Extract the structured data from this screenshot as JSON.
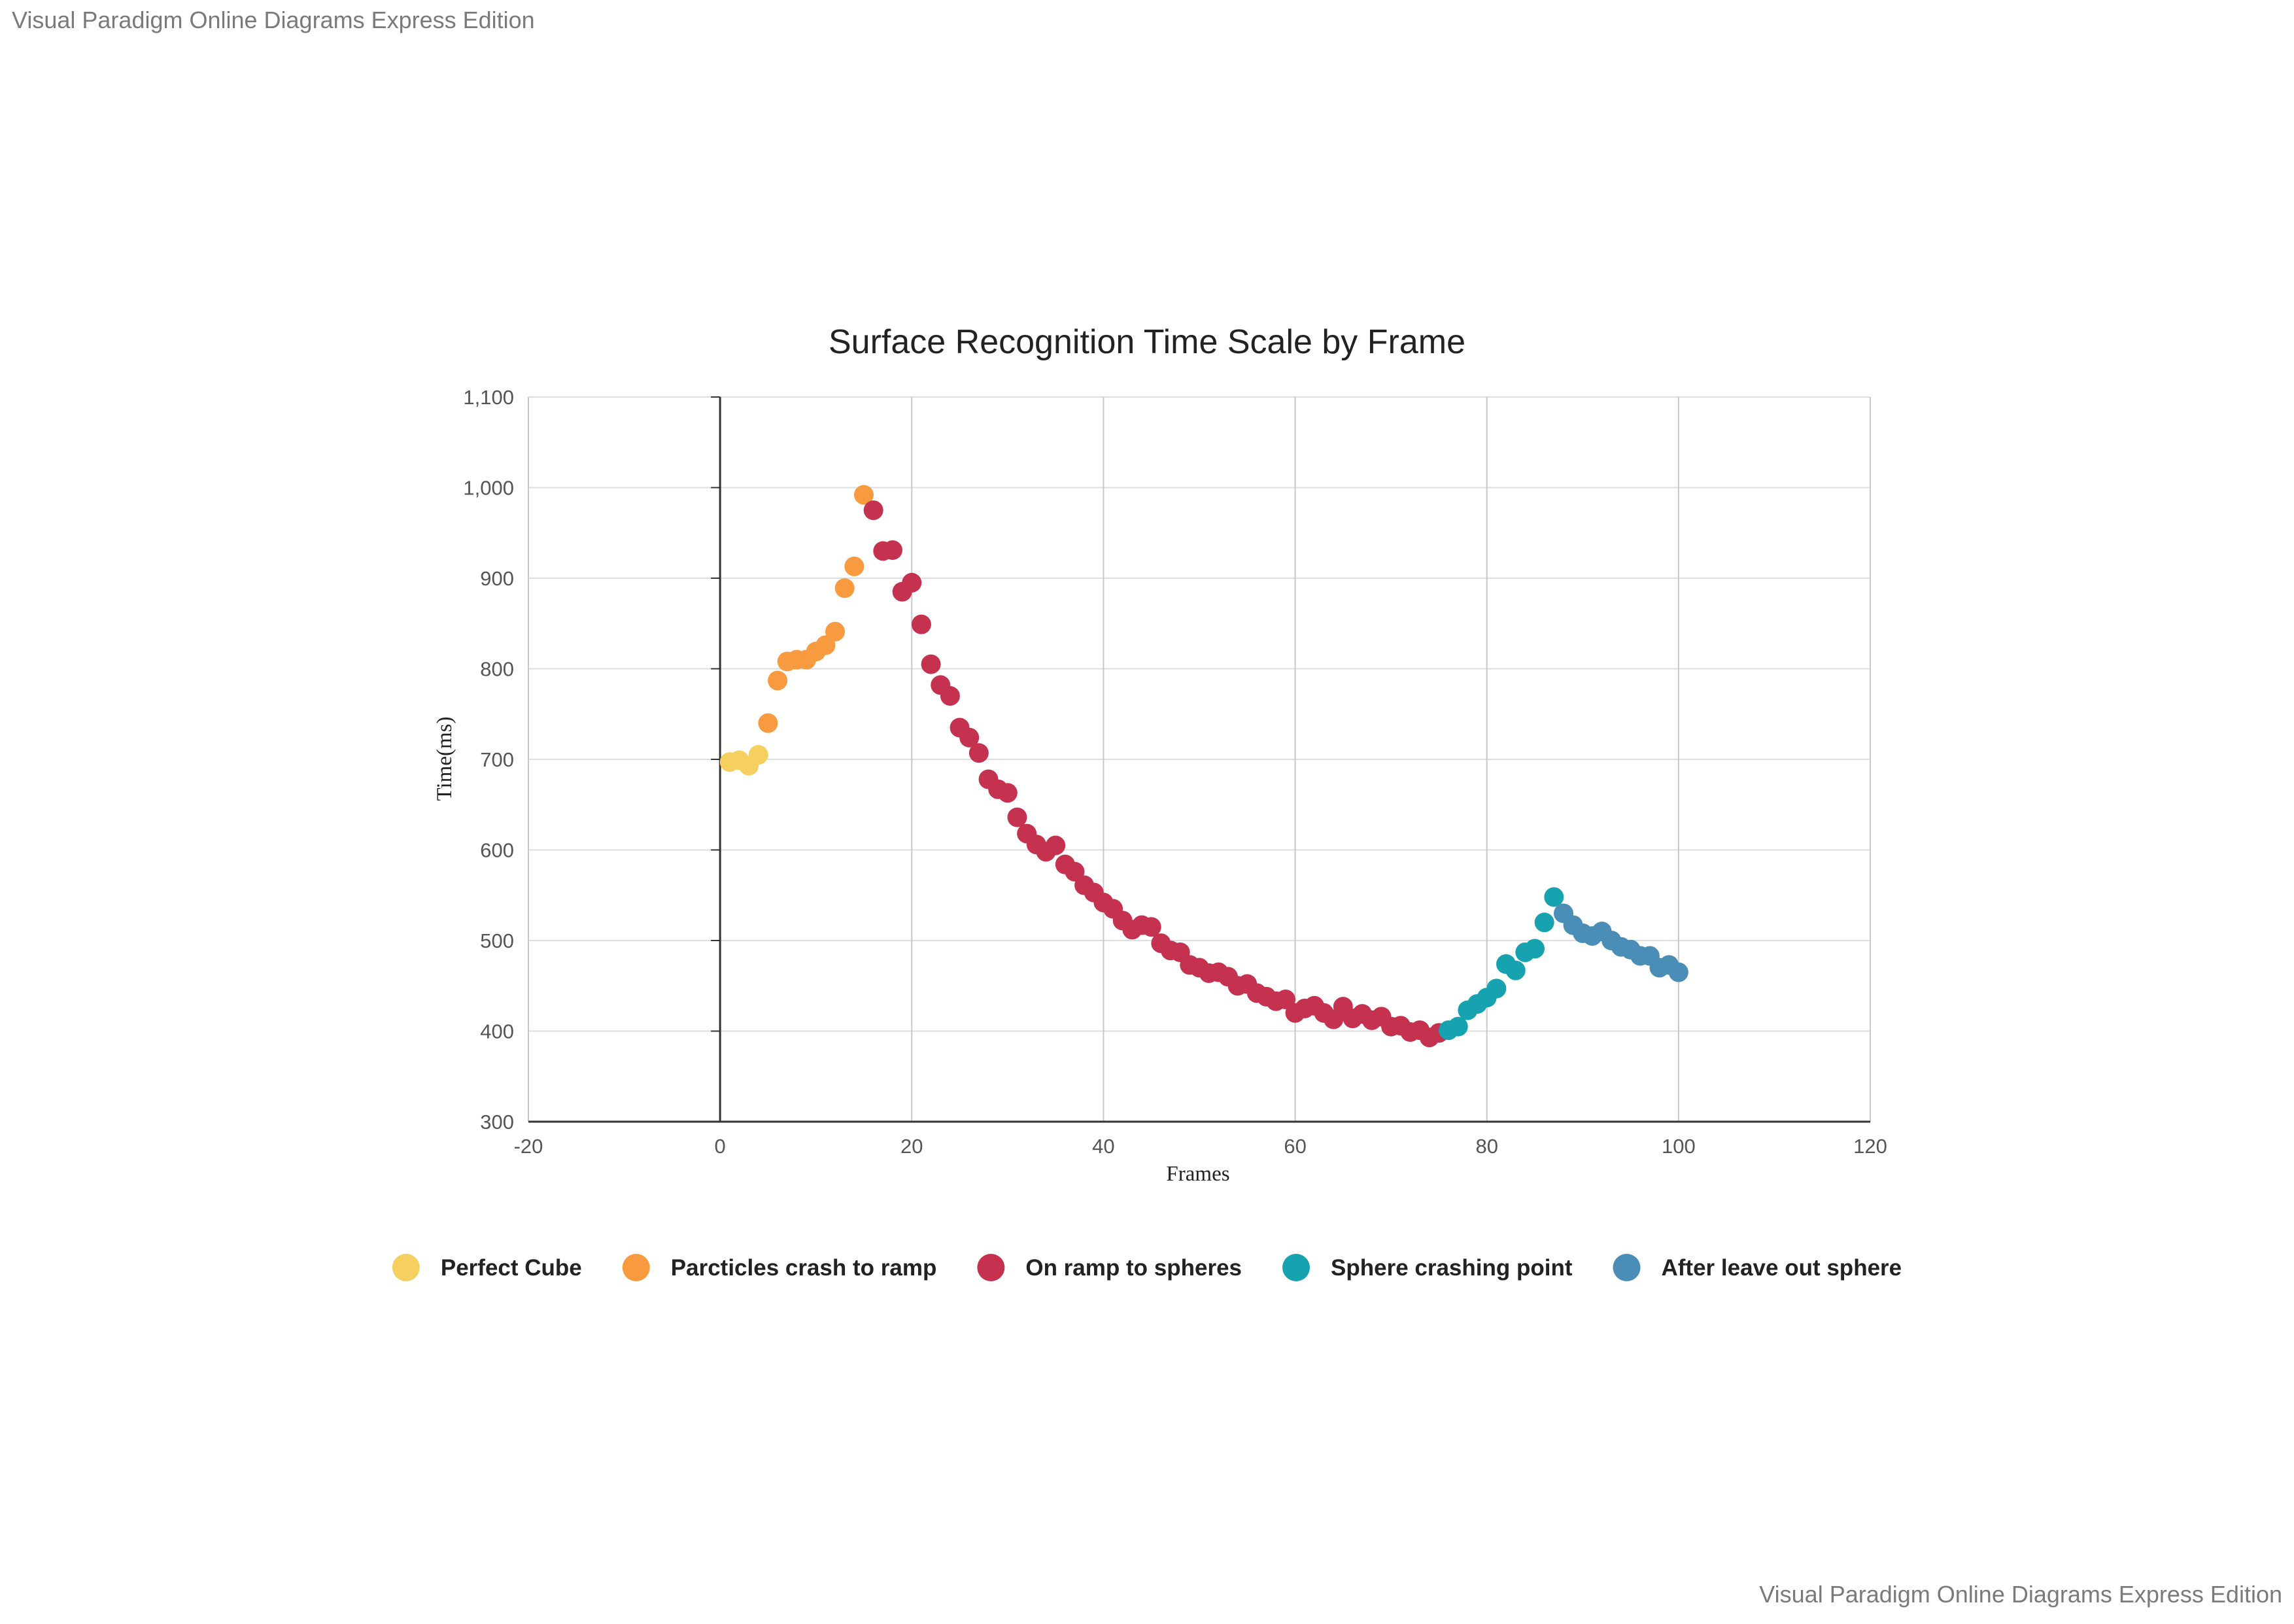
{
  "watermark": {
    "top": "Visual Paradigm Online Diagrams Express Edition",
    "bottom": "Visual Paradigm Online Diagrams Express Edition"
  },
  "chart_data": {
    "type": "scatter",
    "title": "Surface Recognition Time Scale by Frame",
    "xlabel": "Frames",
    "ylabel": "Time(ms)",
    "xlim": [
      -20,
      120
    ],
    "ylim": [
      300,
      1100
    ],
    "x_ticks": [
      "-20",
      "0",
      "20",
      "40",
      "60",
      "80",
      "100",
      "120"
    ],
    "y_ticks": [
      "300",
      "400",
      "500",
      "600",
      "700",
      "800",
      "900",
      "1,000",
      "1,100"
    ],
    "grid": true,
    "legend_position": "bottom",
    "series": [
      {
        "name": "Perfect Cube",
        "color": "#F5D060",
        "points": [
          [
            1,
            697
          ],
          [
            2,
            699
          ],
          [
            3,
            693
          ],
          [
            4,
            705
          ]
        ]
      },
      {
        "name": "Parcticles crash to ramp",
        "color": "#F79A40",
        "points": [
          [
            5,
            740
          ],
          [
            6,
            787
          ],
          [
            7,
            808
          ],
          [
            8,
            810
          ],
          [
            9,
            810
          ],
          [
            10,
            819
          ],
          [
            11,
            826
          ],
          [
            12,
            841
          ],
          [
            13,
            889
          ],
          [
            14,
            913
          ],
          [
            15,
            992
          ]
        ]
      },
      {
        "name": "On ramp to spheres",
        "color": "#C43250",
        "points": [
          [
            16,
            975
          ],
          [
            17,
            930
          ],
          [
            18,
            931
          ],
          [
            19,
            885
          ],
          [
            20,
            895
          ],
          [
            21,
            849
          ],
          [
            22,
            805
          ],
          [
            23,
            782
          ],
          [
            24,
            770
          ],
          [
            25,
            735
          ],
          [
            26,
            724
          ],
          [
            27,
            707
          ],
          [
            28,
            678
          ],
          [
            29,
            667
          ],
          [
            30,
            663
          ],
          [
            31,
            636
          ],
          [
            32,
            618
          ],
          [
            33,
            606
          ],
          [
            34,
            598
          ],
          [
            35,
            605
          ],
          [
            36,
            584
          ],
          [
            37,
            576
          ],
          [
            38,
            561
          ],
          [
            39,
            553
          ],
          [
            40,
            542
          ],
          [
            41,
            535
          ],
          [
            42,
            522
          ],
          [
            43,
            512
          ],
          [
            44,
            517
          ],
          [
            45,
            515
          ],
          [
            46,
            497
          ],
          [
            47,
            489
          ],
          [
            48,
            487
          ],
          [
            49,
            473
          ],
          [
            50,
            470
          ],
          [
            51,
            464
          ],
          [
            52,
            465
          ],
          [
            53,
            460
          ],
          [
            54,
            450
          ],
          [
            55,
            452
          ],
          [
            56,
            442
          ],
          [
            57,
            438
          ],
          [
            58,
            433
          ],
          [
            59,
            435
          ],
          [
            60,
            420
          ],
          [
            61,
            425
          ],
          [
            62,
            428
          ],
          [
            63,
            420
          ],
          [
            64,
            413
          ],
          [
            65,
            427
          ],
          [
            66,
            414
          ],
          [
            67,
            419
          ],
          [
            68,
            412
          ],
          [
            69,
            416
          ],
          [
            70,
            405
          ],
          [
            71,
            406
          ],
          [
            72,
            399
          ],
          [
            73,
            401
          ],
          [
            74,
            393
          ],
          [
            75,
            398
          ]
        ]
      },
      {
        "name": "Sphere crashing point",
        "color": "#17A2B0",
        "points": [
          [
            76,
            401
          ],
          [
            77,
            405
          ],
          [
            78,
            423
          ],
          [
            79,
            430
          ],
          [
            80,
            437
          ],
          [
            81,
            447
          ],
          [
            82,
            474
          ],
          [
            83,
            467
          ],
          [
            84,
            487
          ],
          [
            85,
            491
          ],
          [
            86,
            520
          ],
          [
            87,
            548
          ]
        ]
      },
      {
        "name": "After leave out sphere",
        "color": "#4A8DB7",
        "points": [
          [
            88,
            530
          ],
          [
            89,
            517
          ],
          [
            90,
            508
          ],
          [
            91,
            505
          ],
          [
            92,
            510
          ],
          [
            93,
            500
          ],
          [
            94,
            493
          ],
          [
            95,
            490
          ],
          [
            96,
            483
          ],
          [
            97,
            483
          ],
          [
            98,
            470
          ],
          [
            99,
            473
          ],
          [
            100,
            465
          ]
        ]
      }
    ]
  }
}
